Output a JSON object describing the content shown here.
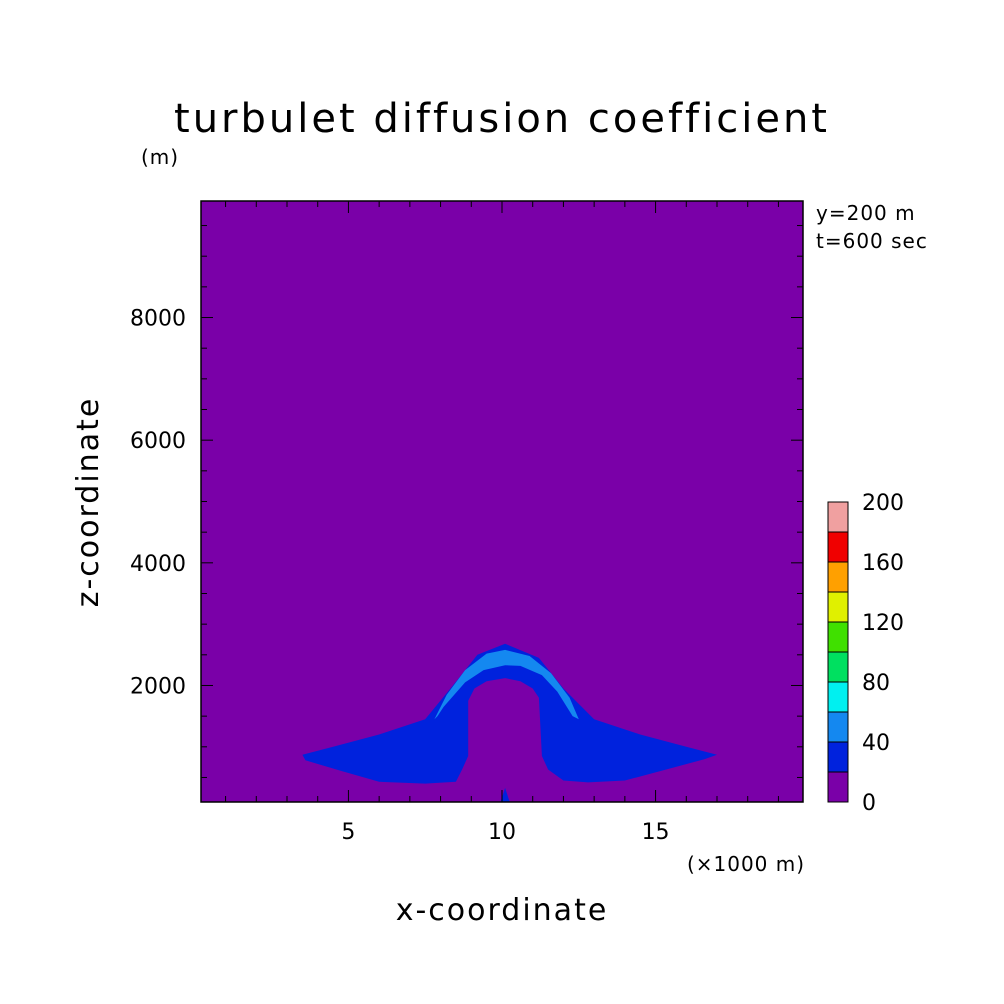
{
  "chart_data": {
    "type": "heatmap",
    "title": "turbulet diffusion coefficient",
    "xlabel": "x-coordinate",
    "ylabel": "z-coordinate",
    "x_unit": "(×1000 m)",
    "y_unit": "(m)",
    "annotations": [
      "y=200 m",
      "t=600 sec"
    ],
    "xlim": [
      0.2,
      19.8
    ],
    "ylim": [
      100,
      9900
    ],
    "x_ticks": [
      5,
      10,
      15
    ],
    "y_ticks": [
      2000,
      4000,
      6000,
      8000
    ],
    "grid": false,
    "legend_position": "right",
    "colorbar": {
      "levels": [
        0,
        20,
        40,
        60,
        80,
        100,
        120,
        140,
        160,
        180,
        200
      ],
      "tick_labels": [
        0,
        40,
        80,
        120,
        160,
        200
      ],
      "colors": [
        "#7a00a8",
        "#0022dd",
        "#1488f0",
        "#00f0f0",
        "#00e060",
        "#40e000",
        "#e0f000",
        "#ffa000",
        "#f00000",
        "#f0a0a0"
      ]
    },
    "contours": [
      {
        "level": "0-20",
        "color": "#7a00a8",
        "region": "background (entire domain)"
      },
      {
        "level": "20-40",
        "color": "#0022dd",
        "outline": [
          [
            3.5,
            870
          ],
          [
            4.5,
            1000
          ],
          [
            6.0,
            1200
          ],
          [
            7.5,
            1450
          ],
          [
            8.4,
            2000
          ],
          [
            9.2,
            2500
          ],
          [
            10.1,
            2680
          ],
          [
            11.2,
            2450
          ],
          [
            12.0,
            1950
          ],
          [
            13.0,
            1450
          ],
          [
            14.5,
            1200
          ],
          [
            16.0,
            1000
          ],
          [
            17.0,
            870
          ],
          [
            16.6,
            800
          ],
          [
            15.5,
            650
          ],
          [
            14.0,
            450
          ],
          [
            12.8,
            420
          ],
          [
            12.0,
            450
          ],
          [
            11.5,
            630
          ],
          [
            11.3,
            850
          ],
          [
            11.2,
            1800
          ],
          [
            11.0,
            1950
          ],
          [
            10.6,
            2070
          ],
          [
            10.1,
            2120
          ],
          [
            9.5,
            2070
          ],
          [
            9.1,
            1950
          ],
          [
            8.9,
            1750
          ],
          [
            8.9,
            850
          ],
          [
            8.7,
            630
          ],
          [
            8.5,
            430
          ],
          [
            7.5,
            400
          ],
          [
            6.0,
            430
          ],
          [
            4.8,
            600
          ],
          [
            3.6,
            780
          ]
        ]
      },
      {
        "level": "40-60",
        "color": "#1488f0",
        "outline": [
          [
            7.8,
            1450
          ],
          [
            8.2,
            1850
          ],
          [
            8.8,
            2250
          ],
          [
            9.5,
            2520
          ],
          [
            10.1,
            2580
          ],
          [
            10.9,
            2480
          ],
          [
            11.6,
            2200
          ],
          [
            12.2,
            1800
          ],
          [
            12.5,
            1450
          ],
          [
            12.3,
            1500
          ],
          [
            11.8,
            1900
          ],
          [
            11.3,
            2170
          ],
          [
            10.6,
            2320
          ],
          [
            10.1,
            2330
          ],
          [
            9.4,
            2250
          ],
          [
            8.8,
            2050
          ],
          [
            8.1,
            1650
          ],
          [
            7.9,
            1500
          ]
        ]
      },
      {
        "level": "20-40",
        "color": "#0022dd",
        "outline": [
          [
            9.95,
            100
          ],
          [
            10.1,
            330
          ],
          [
            10.25,
            100
          ]
        ]
      }
    ]
  }
}
